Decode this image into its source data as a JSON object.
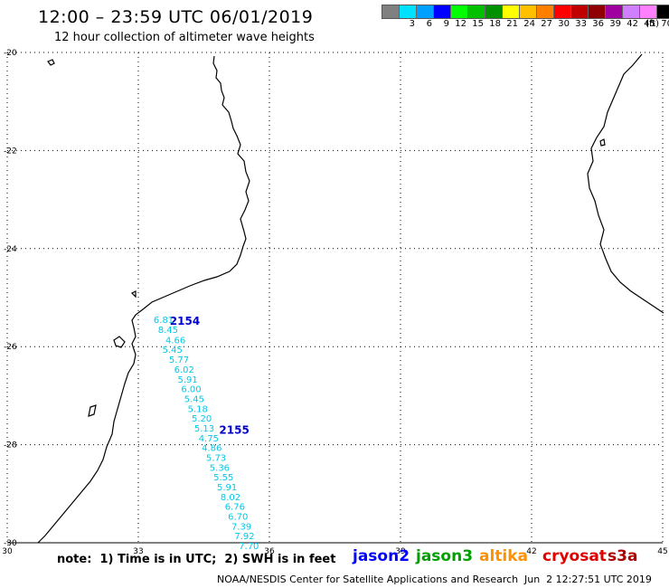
{
  "header": {
    "title": "12:00 – 23:59 UTC 06/01/2019",
    "subtitle": "12 hour collection of altimeter wave heights"
  },
  "legend": {
    "unit": "(ft)",
    "labels": [
      "3",
      "6",
      "9",
      "12",
      "15",
      "18",
      "21",
      "24",
      "27",
      "30",
      "33",
      "36",
      "39",
      "42",
      "45",
      "70"
    ],
    "colors": [
      "#808080",
      "#00e0ff",
      "#00a0ff",
      "#0000ff",
      "#00ff00",
      "#00c000",
      "#009000",
      "#ffff00",
      "#ffc000",
      "#ff8000",
      "#ff0000",
      "#c00000",
      "#900000",
      "#a000a0",
      "#d080ff",
      "#ff80ff",
      "#000000"
    ]
  },
  "axes": {
    "lat_labels": [
      "-20",
      "-22",
      "-24",
      "-26",
      "-28",
      "-30"
    ],
    "lat_values": [
      -20,
      -22,
      -24,
      -26,
      -28,
      -30
    ],
    "lon_labels": [
      "30",
      "33",
      "36",
      "39",
      "42",
      "45"
    ],
    "lon_values": [
      30,
      33,
      36,
      39,
      42,
      45
    ],
    "lon_range": [
      30,
      45
    ],
    "lat_range": [
      -20,
      -30
    ]
  },
  "tracks": [
    {
      "id": "2154",
      "satellite": "jason2",
      "color": "#0000cc",
      "label_lon": 33.72,
      "label_lat": -25.55
    },
    {
      "id": "2155",
      "satellite": "jason2",
      "color": "#0000cc",
      "label_lon": 34.85,
      "label_lat": -27.78
    }
  ],
  "wave_heights": {
    "color": "#00c8e8",
    "points": [
      {
        "label": "6.81",
        "lon": 33.35,
        "lat": -25.52
      },
      {
        "label": "8.45",
        "lon": 33.45,
        "lat": -25.72
      },
      {
        "label": "4.66",
        "lon": 33.62,
        "lat": -25.93
      },
      {
        "label": "5.45",
        "lon": 33.55,
        "lat": -26.13
      },
      {
        "label": "5.77",
        "lon": 33.7,
        "lat": -26.33
      },
      {
        "label": "6.02",
        "lon": 33.82,
        "lat": -26.53
      },
      {
        "label": "5.91",
        "lon": 33.9,
        "lat": -26.73
      },
      {
        "label": "6.00",
        "lon": 33.98,
        "lat": -26.93
      },
      {
        "label": "5.45",
        "lon": 34.05,
        "lat": -27.13
      },
      {
        "label": "5.18",
        "lon": 34.13,
        "lat": -27.33
      },
      {
        "label": "5.20",
        "lon": 34.22,
        "lat": -27.53
      },
      {
        "label": "5.13",
        "lon": 34.28,
        "lat": -27.73
      },
      {
        "label": "4.75",
        "lon": 34.38,
        "lat": -27.93
      },
      {
        "label": "4.86",
        "lon": 34.45,
        "lat": -28.13
      },
      {
        "label": "5.73",
        "lon": 34.55,
        "lat": -28.33
      },
      {
        "label": "5.36",
        "lon": 34.63,
        "lat": -28.53
      },
      {
        "label": "5.55",
        "lon": 34.72,
        "lat": -28.73
      },
      {
        "label": "5.91",
        "lon": 34.8,
        "lat": -28.93
      },
      {
        "label": "8.02",
        "lon": 34.88,
        "lat": -29.13
      },
      {
        "label": "6.76",
        "lon": 34.98,
        "lat": -29.33
      },
      {
        "label": "6.70",
        "lon": 35.05,
        "lat": -29.53
      },
      {
        "label": "7.39",
        "lon": 35.13,
        "lat": -29.73
      },
      {
        "label": "7.92",
        "lon": 35.2,
        "lat": -29.93
      },
      {
        "label": "7.70",
        "lon": 35.3,
        "lat": -30.13
      }
    ]
  },
  "footer": {
    "note": "note:  1) Time is in UTC;  2) SWH is in feet",
    "satellites": [
      {
        "name": "jason2",
        "color": "#0000ff"
      },
      {
        "name": "jason3",
        "color": "#00a000"
      },
      {
        "name": "altika",
        "color": "#ff9000"
      },
      {
        "name": "cryosat",
        "color": "#e00000"
      },
      {
        "name": "s3a",
        "color": "#b00000"
      }
    ],
    "credit": "NOAA/NESDIS Center for Satellite Applications and Research",
    "timestamp": "Jun  2 12:27:51 UTC 2019"
  }
}
